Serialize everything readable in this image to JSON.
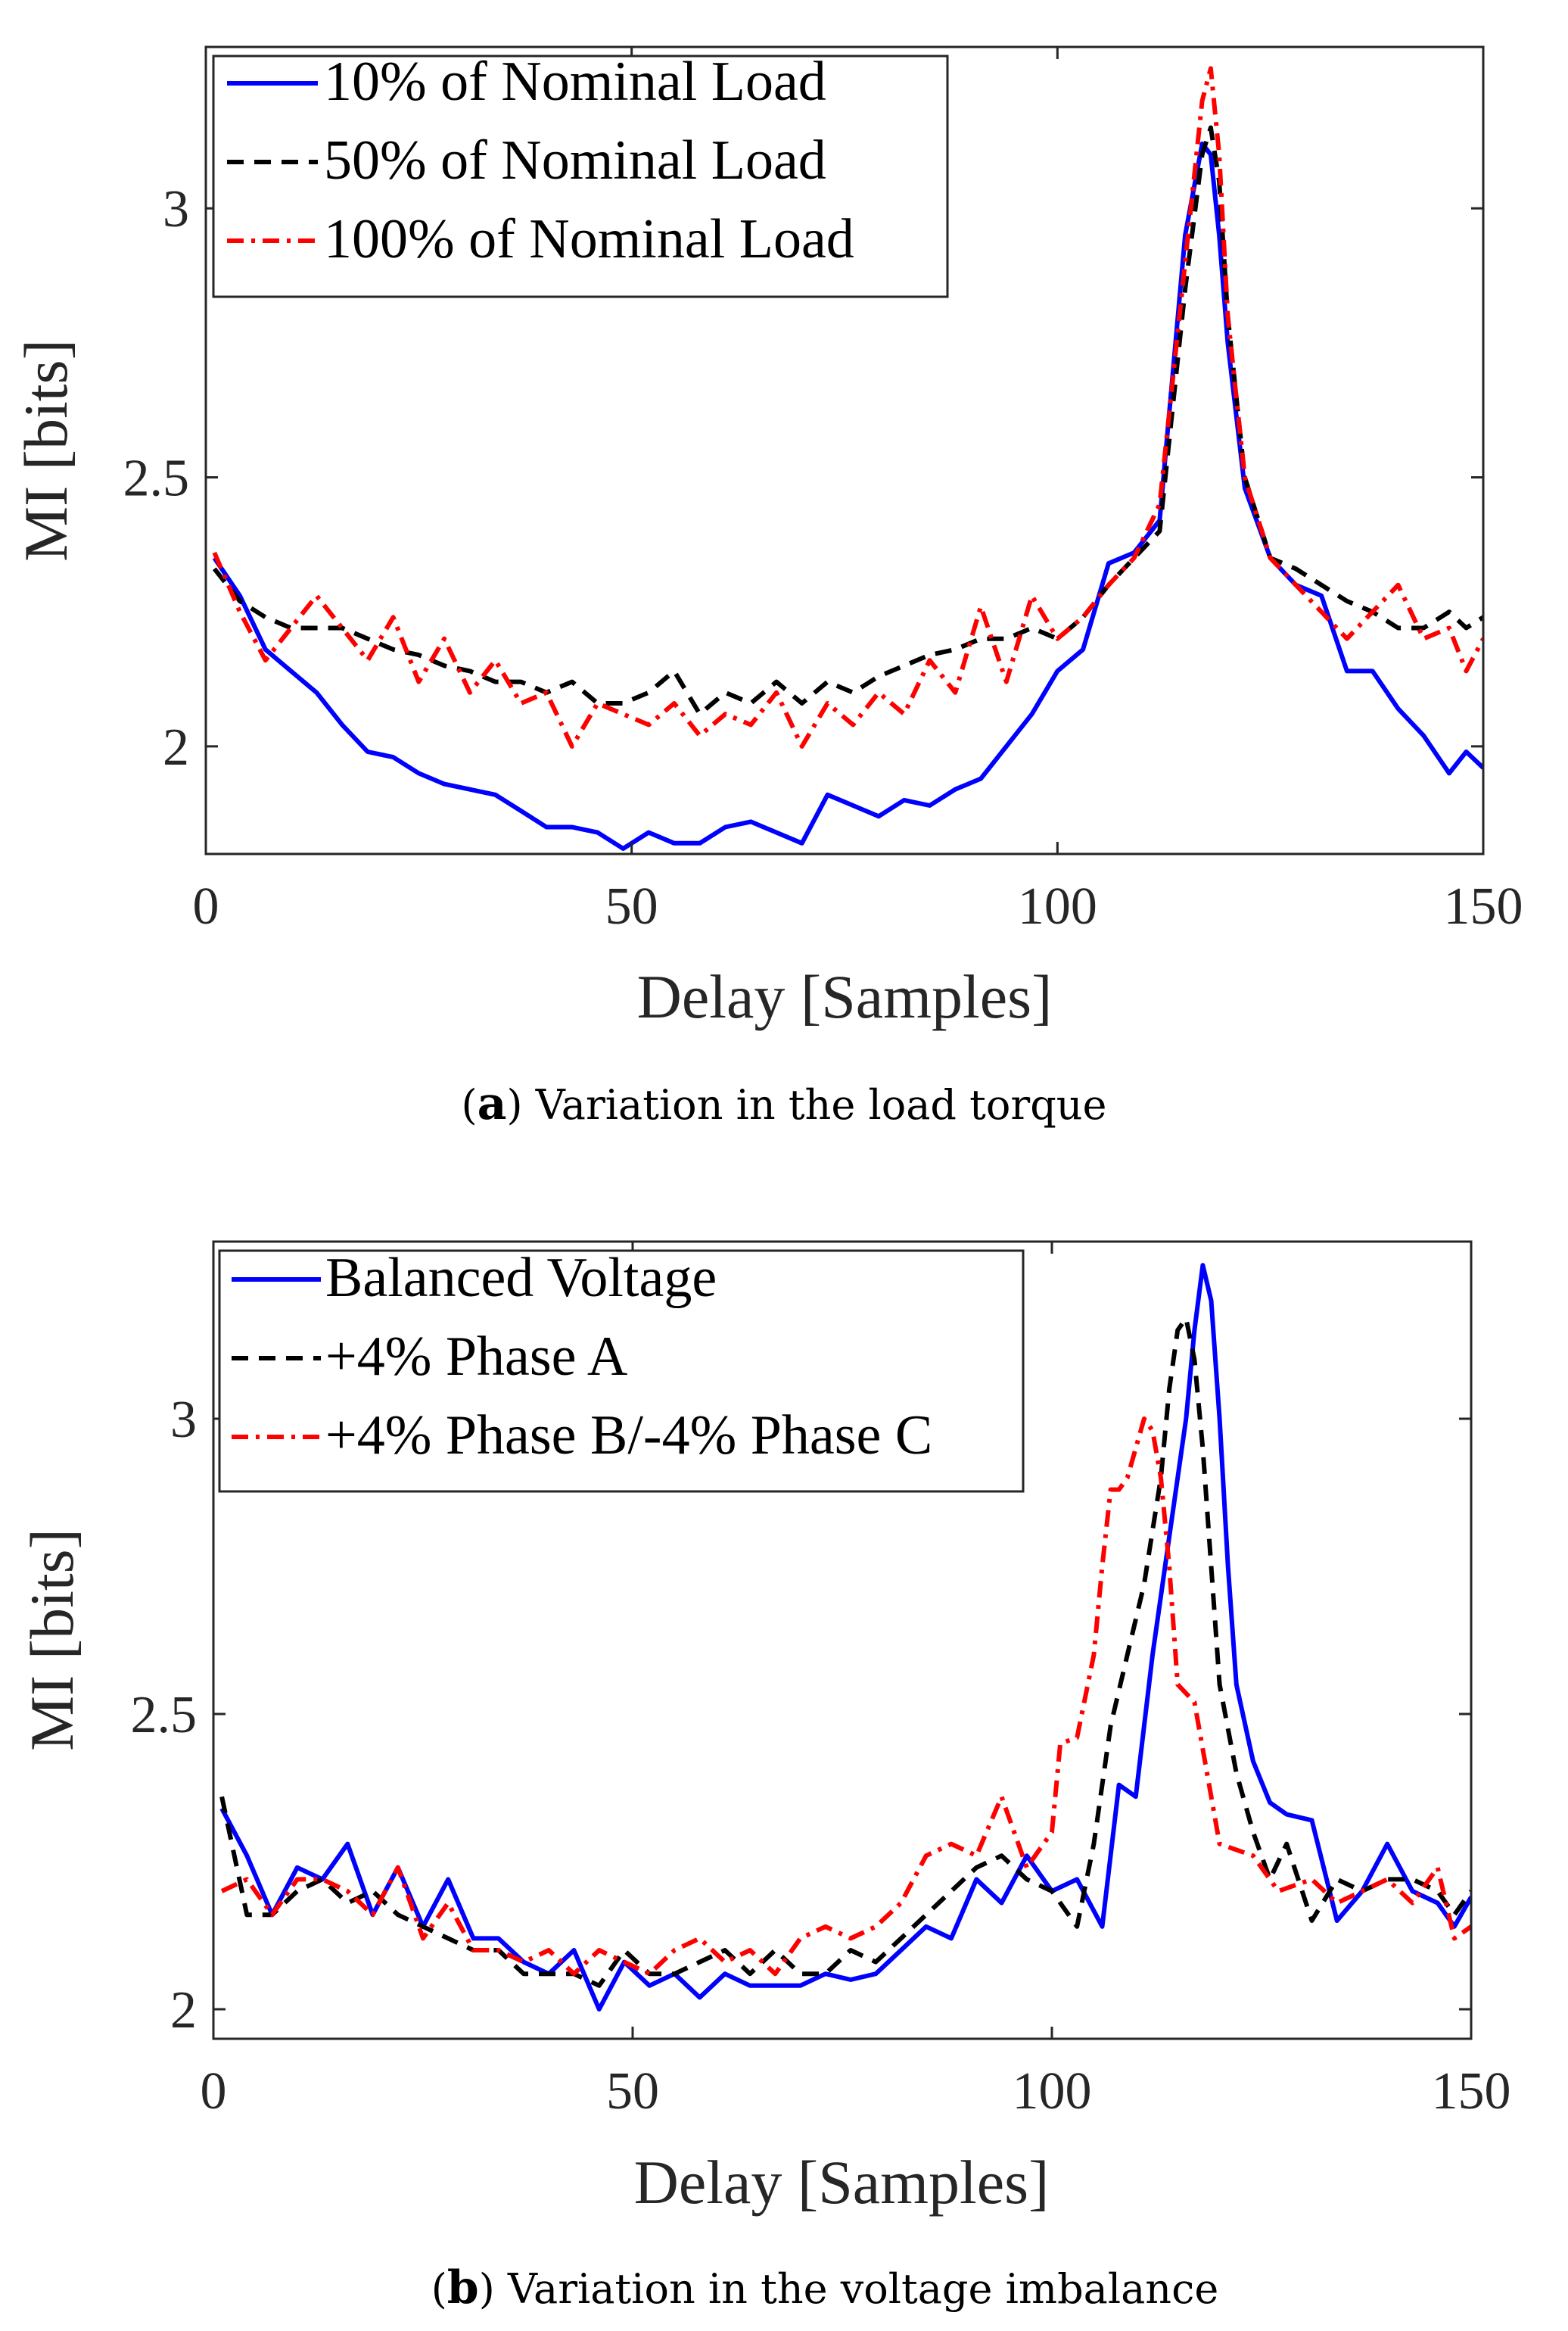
{
  "colors": {
    "blue": "#0000ff",
    "black": "#000000",
    "red": "#ff0000"
  },
  "chart_data": [
    {
      "type": "line",
      "caption_letter": "a",
      "caption": "Variation in the load torque",
      "xlabel": "Delay [Samples]",
      "ylabel": "MI [bits]",
      "xlim": [
        0,
        150
      ],
      "ylim": [
        1.8,
        3.3
      ],
      "xticks": [
        "0",
        "50",
        "100",
        "150"
      ],
      "yticks": [
        "2",
        "2.5",
        "3"
      ],
      "grid": false,
      "legend_position": "top-left",
      "series": [
        {
          "name": "10% of Nominal Load",
          "color": "#0000ff",
          "style": "solid",
          "x": [
            1,
            4,
            7,
            10,
            13,
            16,
            19,
            22,
            25,
            28,
            31,
            34,
            37,
            40,
            43,
            46,
            49,
            52,
            55,
            58,
            61,
            64,
            67,
            70,
            73,
            76,
            79,
            82,
            85,
            88,
            91,
            94,
            97,
            100,
            103,
            106,
            109,
            112,
            115,
            117,
            118,
            119,
            120,
            122,
            125,
            128,
            131,
            134,
            137,
            140,
            143,
            146,
            148,
            150
          ],
          "y": [
            2.35,
            2.28,
            2.18,
            2.14,
            2.1,
            2.04,
            1.99,
            1.98,
            1.95,
            1.93,
            1.92,
            1.91,
            1.88,
            1.85,
            1.85,
            1.84,
            1.81,
            1.84,
            1.82,
            1.82,
            1.85,
            1.86,
            1.84,
            1.82,
            1.91,
            1.89,
            1.87,
            1.9,
            1.89,
            1.92,
            1.94,
            2.0,
            2.06,
            2.14,
            2.18,
            2.34,
            2.36,
            2.42,
            2.95,
            3.12,
            3.1,
            2.95,
            2.75,
            2.48,
            2.35,
            2.3,
            2.28,
            2.14,
            2.14,
            2.07,
            2.02,
            1.95,
            1.99,
            1.96
          ]
        },
        {
          "name": "50% of Nominal Load",
          "color": "#000000",
          "style": "dashed",
          "x": [
            1,
            4,
            7,
            10,
            13,
            16,
            19,
            22,
            25,
            28,
            31,
            34,
            37,
            40,
            43,
            46,
            49,
            52,
            55,
            58,
            61,
            64,
            67,
            70,
            73,
            76,
            79,
            82,
            85,
            88,
            91,
            94,
            97,
            100,
            103,
            106,
            109,
            112,
            115,
            117,
            118,
            119,
            120,
            122,
            125,
            128,
            131,
            134,
            137,
            140,
            143,
            146,
            148,
            150
          ],
          "y": [
            2.33,
            2.27,
            2.24,
            2.22,
            2.22,
            2.22,
            2.2,
            2.18,
            2.17,
            2.15,
            2.14,
            2.12,
            2.12,
            2.1,
            2.12,
            2.08,
            2.08,
            2.1,
            2.14,
            2.06,
            2.1,
            2.08,
            2.12,
            2.08,
            2.12,
            2.1,
            2.13,
            2.15,
            2.17,
            2.18,
            2.2,
            2.2,
            2.22,
            2.2,
            2.24,
            2.3,
            2.35,
            2.4,
            2.85,
            3.1,
            3.15,
            3.05,
            2.8,
            2.5,
            2.35,
            2.33,
            2.3,
            2.27,
            2.25,
            2.22,
            2.22,
            2.25,
            2.22,
            2.24
          ]
        },
        {
          "name": "100% of Nominal Load",
          "color": "#ff0000",
          "style": "dashdot",
          "x": [
            1,
            4,
            7,
            10,
            13,
            16,
            19,
            22,
            25,
            28,
            31,
            34,
            37,
            40,
            43,
            46,
            49,
            52,
            55,
            58,
            61,
            64,
            67,
            70,
            73,
            76,
            79,
            82,
            85,
            88,
            91,
            94,
            97,
            100,
            103,
            106,
            109,
            112,
            115,
            117,
            118,
            119,
            120,
            122,
            125,
            128,
            131,
            134,
            137,
            140,
            143,
            146,
            148,
            150
          ],
          "y": [
            2.36,
            2.25,
            2.16,
            2.22,
            2.28,
            2.22,
            2.16,
            2.24,
            2.12,
            2.2,
            2.1,
            2.16,
            2.08,
            2.1,
            2.0,
            2.08,
            2.06,
            2.04,
            2.08,
            2.02,
            2.06,
            2.04,
            2.1,
            2.0,
            2.08,
            2.04,
            2.1,
            2.06,
            2.16,
            2.1,
            2.26,
            2.12,
            2.28,
            2.2,
            2.24,
            2.3,
            2.35,
            2.45,
            2.9,
            3.2,
            3.26,
            3.1,
            2.8,
            2.5,
            2.35,
            2.3,
            2.25,
            2.2,
            2.25,
            2.3,
            2.2,
            2.22,
            2.14,
            2.2
          ]
        }
      ]
    },
    {
      "type": "line",
      "caption_letter": "b",
      "caption": "Variation in the voltage imbalance",
      "xlabel": "Delay [Samples]",
      "ylabel": "MI [bits]",
      "xlim": [
        0,
        150
      ],
      "ylim": [
        1.95,
        3.3
      ],
      "xticks": [
        "0",
        "50",
        "100",
        "150"
      ],
      "yticks": [
        "2",
        "2.5",
        "3"
      ],
      "grid": false,
      "legend_position": "top-left",
      "series": [
        {
          "name": "Balanced Voltage",
          "color": "#0000ff",
          "style": "solid",
          "x": [
            1,
            4,
            7,
            10,
            13,
            16,
            19,
            22,
            25,
            28,
            31,
            34,
            37,
            40,
            43,
            46,
            49,
            52,
            55,
            58,
            61,
            64,
            67,
            70,
            73,
            76,
            79,
            82,
            85,
            88,
            91,
            94,
            97,
            100,
            103,
            106,
            108,
            110,
            112,
            114,
            116,
            117,
            118,
            119,
            120,
            121,
            122,
            124,
            126,
            128,
            131,
            134,
            137,
            140,
            143,
            146,
            148,
            150
          ],
          "y": [
            2.34,
            2.26,
            2.16,
            2.24,
            2.22,
            2.28,
            2.16,
            2.24,
            2.14,
            2.22,
            2.12,
            2.12,
            2.08,
            2.06,
            2.1,
            2.0,
            2.08,
            2.04,
            2.06,
            2.02,
            2.06,
            2.04,
            2.04,
            2.04,
            2.06,
            2.05,
            2.06,
            2.1,
            2.14,
            2.12,
            2.22,
            2.18,
            2.26,
            2.2,
            2.22,
            2.14,
            2.38,
            2.36,
            2.6,
            2.8,
            3.0,
            3.15,
            3.26,
            3.2,
            3.0,
            2.75,
            2.55,
            2.42,
            2.35,
            2.33,
            2.32,
            2.15,
            2.2,
            2.28,
            2.2,
            2.18,
            2.14,
            2.19
          ]
        },
        {
          "name": "+4% Phase A",
          "color": "#000000",
          "style": "dashed",
          "x": [
            1,
            4,
            7,
            10,
            13,
            16,
            19,
            22,
            25,
            28,
            31,
            34,
            37,
            40,
            43,
            46,
            49,
            52,
            55,
            58,
            61,
            64,
            67,
            70,
            73,
            76,
            79,
            82,
            85,
            88,
            91,
            94,
            97,
            100,
            103,
            105,
            107,
            109,
            111,
            113,
            114,
            115,
            116,
            117,
            118,
            119,
            120,
            122,
            124,
            126,
            128,
            131,
            134,
            137,
            140,
            143,
            146,
            148,
            150
          ],
          "y": [
            2.36,
            2.16,
            2.16,
            2.2,
            2.22,
            2.18,
            2.2,
            2.16,
            2.14,
            2.12,
            2.1,
            2.1,
            2.06,
            2.06,
            2.06,
            2.04,
            2.1,
            2.06,
            2.06,
            2.08,
            2.1,
            2.06,
            2.1,
            2.06,
            2.06,
            2.1,
            2.08,
            2.12,
            2.16,
            2.2,
            2.24,
            2.26,
            2.22,
            2.2,
            2.14,
            2.28,
            2.48,
            2.6,
            2.72,
            2.9,
            3.05,
            3.15,
            3.17,
            3.1,
            2.95,
            2.75,
            2.55,
            2.4,
            2.3,
            2.22,
            2.28,
            2.15,
            2.22,
            2.2,
            2.22,
            2.22,
            2.2,
            2.16,
            2.2
          ]
        },
        {
          "name": "+4% Phase B/-4% Phase C",
          "color": "#ff0000",
          "style": "dashdot",
          "x": [
            1,
            4,
            7,
            10,
            13,
            16,
            19,
            22,
            25,
            28,
            31,
            34,
            37,
            40,
            43,
            46,
            49,
            52,
            55,
            58,
            61,
            64,
            67,
            70,
            73,
            76,
            79,
            82,
            85,
            88,
            91,
            94,
            97,
            100,
            101,
            103,
            105,
            106,
            107,
            108,
            109,
            110,
            111,
            112,
            113,
            114,
            115,
            117,
            120,
            124,
            127,
            131,
            134,
            137,
            140,
            143,
            146,
            148,
            150
          ],
          "y": [
            2.2,
            2.22,
            2.16,
            2.22,
            2.22,
            2.2,
            2.16,
            2.24,
            2.12,
            2.18,
            2.1,
            2.1,
            2.08,
            2.1,
            2.06,
            2.1,
            2.08,
            2.06,
            2.1,
            2.12,
            2.08,
            2.1,
            2.06,
            2.12,
            2.14,
            2.12,
            2.14,
            2.18,
            2.26,
            2.28,
            2.26,
            2.36,
            2.24,
            2.3,
            2.45,
            2.46,
            2.6,
            2.75,
            2.88,
            2.88,
            2.9,
            2.95,
            3.0,
            2.98,
            2.9,
            2.75,
            2.55,
            2.52,
            2.28,
            2.26,
            2.2,
            2.22,
            2.18,
            2.2,
            2.22,
            2.18,
            2.24,
            2.12,
            2.14
          ]
        }
      ]
    }
  ]
}
